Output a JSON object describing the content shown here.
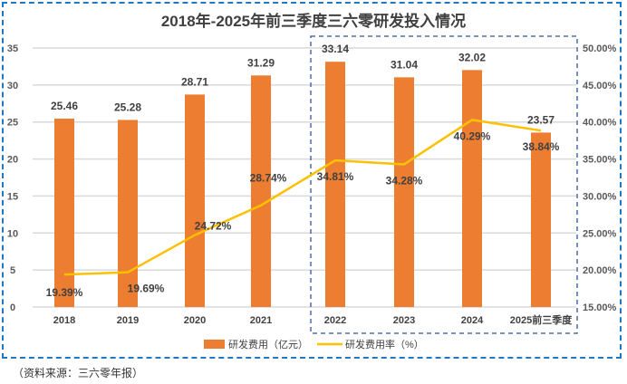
{
  "chart_data": {
    "type": "bar+line",
    "title": "2018年-2025年前三季度三六零研发投入情况",
    "categories": [
      "2018",
      "2019",
      "2020",
      "2021",
      "2022",
      "2023",
      "2024",
      "2025前三季度"
    ],
    "series": [
      {
        "name": "研发费用（亿元）",
        "type": "bar",
        "axis": "left",
        "color": "#ed7d31",
        "values": [
          25.46,
          25.28,
          28.71,
          31.29,
          33.14,
          31.04,
          32.02,
          23.57
        ],
        "labels": [
          "25.46",
          "25.28",
          "28.71",
          "31.29",
          "33.14",
          "31.04",
          "32.02",
          "23.57"
        ]
      },
      {
        "name": "研发费用率（%）",
        "type": "line",
        "axis": "right",
        "color": "#ffc000",
        "values": [
          19.39,
          19.69,
          24.72,
          28.74,
          34.81,
          34.28,
          40.29,
          38.84
        ],
        "labels": [
          "19.39%",
          "19.69%",
          "24.72%",
          "28.74%",
          "34.81%",
          "34.28%",
          "40.29%",
          "38.84%"
        ]
      }
    ],
    "y_left": {
      "range": [
        0,
        35
      ],
      "ticks": [
        "0",
        "5",
        "10",
        "15",
        "20",
        "25",
        "30",
        "35"
      ]
    },
    "y_right": {
      "range": [
        15,
        50
      ],
      "ticks": [
        "15.00%",
        "20.00%",
        "25.00%",
        "30.00%",
        "35.00%",
        "40.00%",
        "45.00%",
        "50.00%"
      ]
    },
    "grid": true,
    "legend": "bottom",
    "highlight_box": "2022-2025前三季度"
  },
  "source": "（资料来源：三六零年报）"
}
